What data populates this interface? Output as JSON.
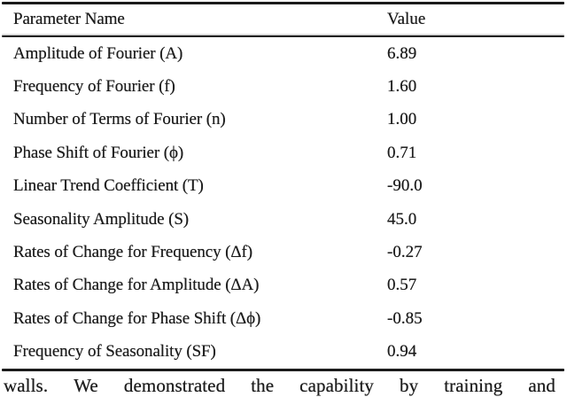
{
  "table": {
    "columns": [
      "Parameter Name",
      "Value"
    ],
    "rows": [
      {
        "name": "Amplitude of Fourier (A)",
        "value": "6.89"
      },
      {
        "name": "Frequency of Fourier (f)",
        "value": "1.60"
      },
      {
        "name": "Number of Terms of Fourier (n)",
        "value": "1.00"
      },
      {
        "name": "Phase Shift of Fourier (ϕ)",
        "value": "0.71"
      },
      {
        "name": "Linear Trend Coefficient (T)",
        "value": "-90.0"
      },
      {
        "name": "Seasonality Amplitude (S)",
        "value": "45.0"
      },
      {
        "name": "Rates of Change for Frequency (Δf)",
        "value": "-0.27"
      },
      {
        "name": "Rates of Change for Amplitude (ΔA)",
        "value": "0.57"
      },
      {
        "name": "Rates of Change for Phase Shift (Δϕ)",
        "value": "-0.85"
      },
      {
        "name": "Frequency of Seasonality (SF)",
        "value": "0.94"
      }
    ]
  },
  "paragraph": {
    "words": [
      "walls.",
      "We",
      "demonstrated",
      "the",
      "capability",
      "by",
      "training",
      "and"
    ]
  },
  "colors": {
    "text": "#1c1c1c",
    "rule": "#1b1b1b",
    "background": "#ffffff"
  }
}
